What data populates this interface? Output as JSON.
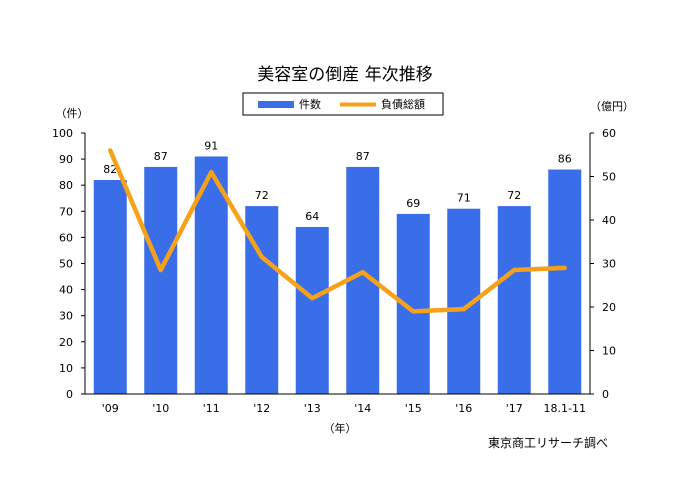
{
  "chart_data": {
    "type": "bar",
    "title": "美容室の倒産 年次推移",
    "categories": [
      "'09",
      "'10",
      "'11",
      "'12",
      "'13",
      "'14",
      "'15",
      "'16",
      "'17",
      "18.1-11"
    ],
    "xlabel": "（年）",
    "series": [
      {
        "name": "件数",
        "type": "bar",
        "axis": "left",
        "color": "#3a6ee8",
        "values": [
          82,
          87,
          91,
          72,
          64,
          87,
          69,
          71,
          72,
          86
        ]
      },
      {
        "name": "負債総額",
        "type": "line",
        "axis": "right",
        "color": "#f5a21a",
        "values": [
          56,
          28.5,
          51,
          31.5,
          22,
          28,
          19,
          19.5,
          28.5,
          29
        ]
      }
    ],
    "y_left": {
      "label": "（件）",
      "range": [
        0,
        100
      ],
      "ticks": [
        "0",
        "10",
        "20",
        "30",
        "40",
        "50",
        "60",
        "70",
        "80",
        "90",
        "100"
      ]
    },
    "y_right": {
      "label": "（億円）",
      "range": [
        0,
        60
      ],
      "ticks": [
        "0",
        "10",
        "20",
        "30",
        "40",
        "50",
        "60"
      ]
    },
    "data_labels": [
      "82",
      "87",
      "91",
      "72",
      "64",
      "87",
      "69",
      "71",
      "72",
      "86"
    ],
    "legend_position": "top",
    "grid": false
  },
  "source_note": "東京商工リサーチ調べ"
}
